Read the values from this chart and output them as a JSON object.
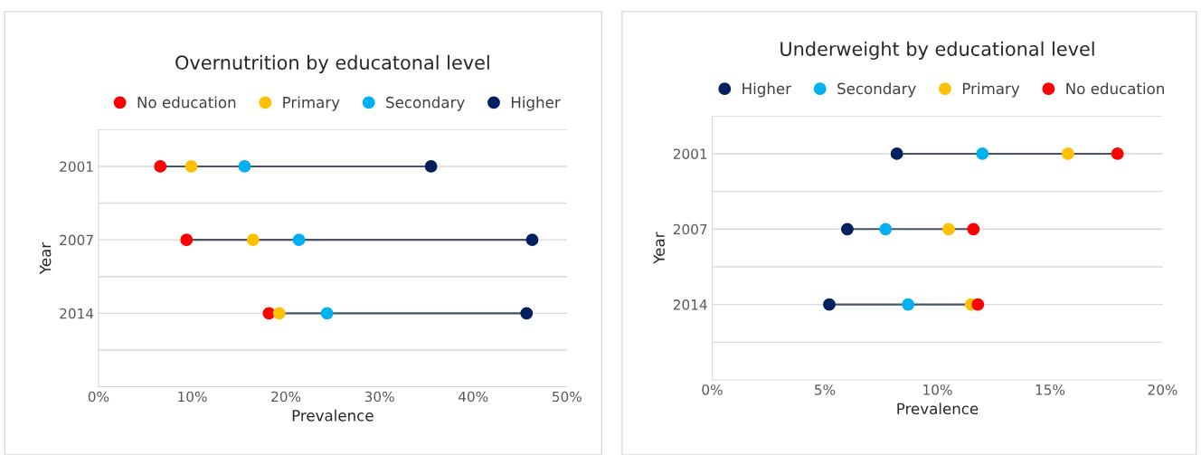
{
  "chart_data": [
    {
      "type": "scatter",
      "title": "Overnutrition by educatonal level",
      "xlabel": "Prevalence",
      "ylabel": "Year",
      "orientation": "horizontal",
      "categories": [
        "2001",
        "2007",
        "2014"
      ],
      "xlim": [
        0,
        50
      ],
      "xticks": [
        {
          "value": 0,
          "label": "0%"
        },
        {
          "value": 10,
          "label": "10%"
        },
        {
          "value": 20,
          "label": "20%"
        },
        {
          "value": 30,
          "label": "30%"
        },
        {
          "value": 40,
          "label": "40%"
        },
        {
          "value": 50,
          "label": "50%"
        }
      ],
      "grid": "y",
      "legend": "top",
      "marker": "circle",
      "series": [
        {
          "name": "No education",
          "color": "#ff0000",
          "values": [
            6.6,
            9.4,
            18.2
          ]
        },
        {
          "name": "Primary",
          "color": "#ffc000",
          "values": [
            9.9,
            16.5,
            19.3
          ]
        },
        {
          "name": "Secondary",
          "color": "#00b0f0",
          "values": [
            15.6,
            21.4,
            24.4
          ]
        },
        {
          "name": "Higher",
          "color": "#002060",
          "values": [
            35.5,
            46.3,
            45.7
          ]
        }
      ]
    },
    {
      "type": "scatter",
      "title": "Underweight by educational level",
      "xlabel": "Prevalence",
      "ylabel": "Year",
      "orientation": "horizontal",
      "categories": [
        "2001",
        "2007",
        "2014"
      ],
      "xlim": [
        0,
        20
      ],
      "xticks": [
        {
          "value": 0,
          "label": "0%"
        },
        {
          "value": 5,
          "label": "5%"
        },
        {
          "value": 10,
          "label": "10%"
        },
        {
          "value": 15,
          "label": "15%"
        },
        {
          "value": 20,
          "label": "20%"
        }
      ],
      "grid": "y",
      "legend": "top",
      "marker": "circle",
      "series": [
        {
          "name": "Higher",
          "color": "#002060",
          "values": [
            8.2,
            6.0,
            5.2
          ]
        },
        {
          "name": "Secondary",
          "color": "#00b0f0",
          "values": [
            12.0,
            7.7,
            8.7
          ]
        },
        {
          "name": "Primary",
          "color": "#ffc000",
          "values": [
            15.8,
            10.5,
            11.5
          ]
        },
        {
          "name": "No education",
          "color": "#ff0000",
          "values": [
            18.0,
            11.6,
            11.8
          ]
        }
      ]
    }
  ]
}
